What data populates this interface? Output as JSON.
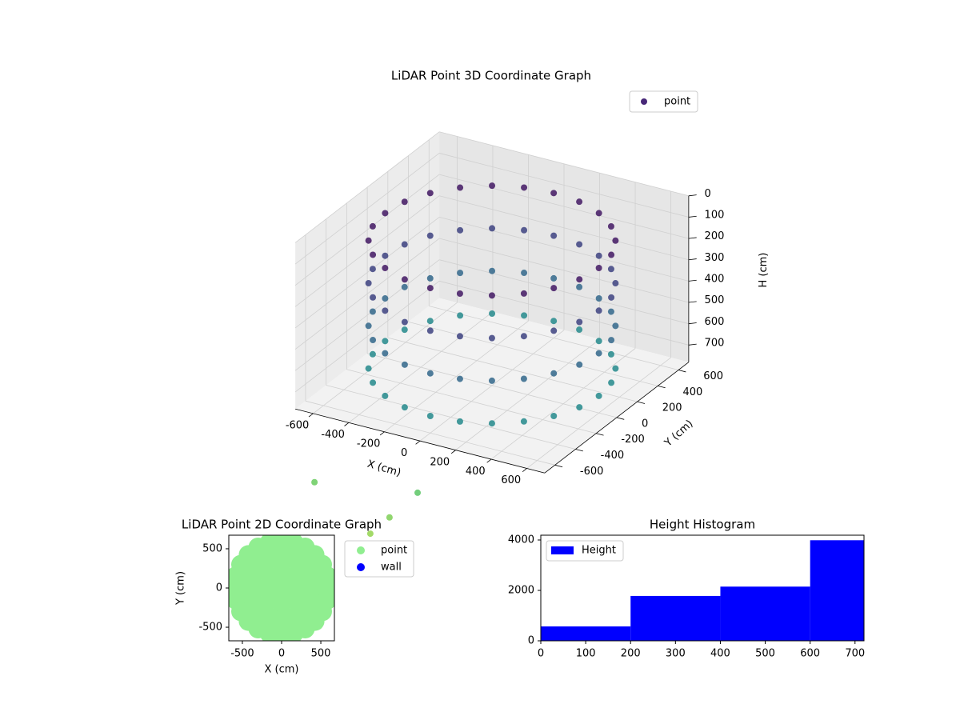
{
  "chart_data": [
    {
      "type": "scatter3d",
      "title": "LiDAR Point 3D Coordinate Graph",
      "xlabel": "X (cm)",
      "ylabel": "Y (cm)",
      "zlabel": "H (cm)",
      "xlim": [
        -700,
        700
      ],
      "ylim": [
        -700,
        700
      ],
      "zlim": [
        0,
        780
      ],
      "zinvert": true,
      "xticks": [
        -600,
        -400,
        -200,
        0,
        200,
        400,
        600
      ],
      "yticks": [
        -600,
        -400,
        -200,
        0,
        200,
        400,
        600
      ],
      "zticks": [
        0,
        100,
        200,
        300,
        400,
        500,
        600,
        700
      ],
      "grid": true,
      "colormap": "viridis",
      "color_limits": [
        0,
        1500
      ],
      "legend": "upper right",
      "series": [
        {
          "name": "point",
          "color": "#482878",
          "x": [
            600,
            580,
            520,
            424,
            300,
            155,
            0,
            -155,
            -300,
            -424,
            -520,
            -580,
            -600,
            -580,
            -520,
            -424,
            -300,
            -155,
            0,
            155,
            300,
            424,
            520,
            580,
            600,
            580,
            520,
            424,
            300,
            155,
            0,
            -155,
            -300,
            -424,
            -520,
            -580,
            -600,
            -580,
            -520,
            -424,
            -300,
            -155,
            0,
            155,
            300,
            424,
            520,
            580,
            600,
            580,
            520,
            424,
            300,
            155,
            0,
            -155,
            -300,
            -424,
            -520,
            -580,
            -600,
            -580,
            -520,
            -424,
            -300,
            -155,
            0,
            155,
            300,
            424,
            520,
            580,
            600,
            580,
            520,
            424,
            300,
            155,
            0,
            -155,
            -300,
            -424,
            -520,
            -580,
            -600,
            -580,
            -520,
            -424,
            -300,
            -155,
            0,
            155,
            300,
            424,
            520,
            580,
            -650,
            -200,
            -100,
            -250
          ],
          "y": [
            0,
            155,
            300,
            424,
            520,
            580,
            600,
            580,
            520,
            424,
            300,
            155,
            0,
            -155,
            -300,
            -424,
            -520,
            -580,
            -600,
            -580,
            -520,
            -424,
            -300,
            -155,
            0,
            155,
            300,
            424,
            520,
            580,
            600,
            580,
            520,
            424,
            300,
            155,
            0,
            -155,
            -300,
            -424,
            -520,
            -580,
            -600,
            -580,
            -520,
            -424,
            -300,
            -155,
            0,
            155,
            300,
            424,
            520,
            580,
            600,
            580,
            520,
            424,
            300,
            155,
            0,
            -155,
            -300,
            -424,
            -520,
            -580,
            -600,
            -580,
            -520,
            -424,
            -300,
            -155,
            0,
            155,
            300,
            424,
            520,
            580,
            600,
            580,
            520,
            424,
            300,
            155,
            0,
            -155,
            -300,
            -424,
            -520,
            -580,
            -600,
            -580,
            -520,
            -424,
            -300,
            -155,
            -600,
            -650,
            -550,
            -750
          ],
          "h": [
            100,
            100,
            100,
            100,
            100,
            100,
            100,
            100,
            100,
            100,
            100,
            100,
            100,
            100,
            100,
            100,
            100,
            100,
            100,
            100,
            100,
            100,
            100,
            100,
            300,
            300,
            300,
            300,
            300,
            300,
            300,
            300,
            300,
            300,
            300,
            300,
            300,
            300,
            300,
            300,
            300,
            300,
            300,
            300,
            300,
            300,
            300,
            300,
            500,
            500,
            500,
            500,
            500,
            500,
            500,
            500,
            500,
            500,
            500,
            500,
            500,
            500,
            500,
            500,
            500,
            500,
            500,
            500,
            500,
            500,
            500,
            500,
            700,
            700,
            700,
            700,
            700,
            700,
            700,
            700,
            700,
            700,
            700,
            700,
            700,
            700,
            700,
            700,
            700,
            700,
            700,
            700,
            700,
            700,
            700,
            700,
            1150,
            1200,
            1100,
            1250
          ]
        }
      ]
    },
    {
      "type": "scatter",
      "title": "LiDAR Point 2D Coordinate Graph",
      "xlabel": "X (cm)",
      "ylabel": "Y (cm)",
      "xlim": [
        -673,
        673
      ],
      "ylim": [
        -673,
        673
      ],
      "xticks": [
        -500,
        0,
        500
      ],
      "yticks": [
        -500,
        0,
        500
      ],
      "legend": "outside right",
      "series": [
        {
          "name": "point",
          "color": "#90ee90",
          "x": [
            0,
            200,
            141,
            0,
            -141,
            -200,
            -141,
            0,
            141,
            400,
            370,
            283,
            153,
            0,
            -153,
            -283,
            -370,
            -400,
            -370,
            -283,
            -153,
            0,
            153,
            283,
            370,
            600,
            580,
            520,
            424,
            300,
            155,
            0,
            -155,
            -300,
            -424,
            -520,
            -580,
            -600,
            -580,
            -520,
            -424,
            -300,
            -155,
            0,
            155,
            300,
            424,
            520,
            580
          ],
          "y": [
            0,
            0,
            141,
            200,
            141,
            0,
            -141,
            -200,
            -141,
            0,
            153,
            283,
            370,
            400,
            370,
            283,
            153,
            0,
            -153,
            -283,
            -370,
            -400,
            -370,
            -283,
            -153,
            0,
            155,
            300,
            424,
            520,
            580,
            600,
            580,
            520,
            424,
            300,
            155,
            0,
            -155,
            -300,
            -424,
            -520,
            -580,
            -600,
            -580,
            -520,
            -424,
            -300,
            -155
          ]
        },
        {
          "name": "wall",
          "color": "#0000ff",
          "x": [],
          "y": []
        }
      ]
    },
    {
      "type": "histogram",
      "title": "Height Histogram",
      "bins": [
        0,
        200,
        400,
        600,
        800
      ],
      "xlim": [
        0,
        720
      ],
      "ylim": [
        0,
        4190
      ],
      "xticks": [
        0,
        100,
        200,
        300,
        400,
        500,
        600,
        700
      ],
      "yticks": [
        0,
        2000,
        4000
      ],
      "legend": "upper left",
      "series": [
        {
          "name": "Height",
          "color": "#0000ff",
          "values": [
            570,
            1780,
            2150,
            3990
          ]
        }
      ]
    }
  ]
}
